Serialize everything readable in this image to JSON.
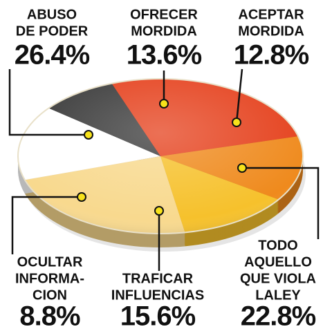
{
  "chart_data": {
    "type": "pie",
    "categories": [
      [
        "ABUSO",
        "DE PODER"
      ],
      [
        "OFRECER",
        "MORDIDA"
      ],
      [
        "ACEPTAR",
        "MORDIDA"
      ],
      [
        "TODO",
        "AQUELLO",
        "QUE VIOLA",
        "LALEY"
      ],
      [
        "TRAFICAR",
        "INFLUENCIAS"
      ],
      [
        "OCULTAR",
        "INFORMA-",
        "CION"
      ]
    ],
    "values": [
      26.4,
      13.6,
      12.8,
      22.8,
      15.6,
      8.8
    ],
    "value_labels": [
      "26.4%",
      "13.6%",
      "12.8%",
      "22.8%",
      "15.6%",
      "8.8%"
    ],
    "colors": [
      "#e5411d",
      "#ef8a1d",
      "#f6c12c",
      "#f8d98e",
      "#ffffff",
      "#3b3b3b"
    ]
  }
}
